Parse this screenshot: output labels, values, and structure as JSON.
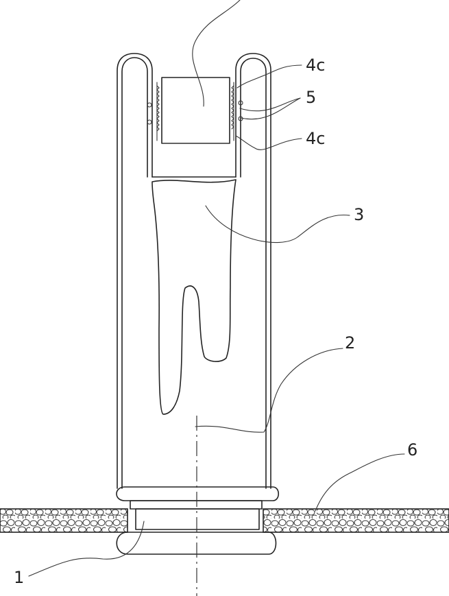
{
  "labels": {
    "callout_4c_top": "4c",
    "callout_5": "5",
    "callout_4c_bottom": "4c",
    "callout_3": "3",
    "callout_2": "2",
    "callout_6": "6",
    "callout_1": "1"
  },
  "colors": {
    "line": "#222222",
    "background": "#ffffff"
  }
}
